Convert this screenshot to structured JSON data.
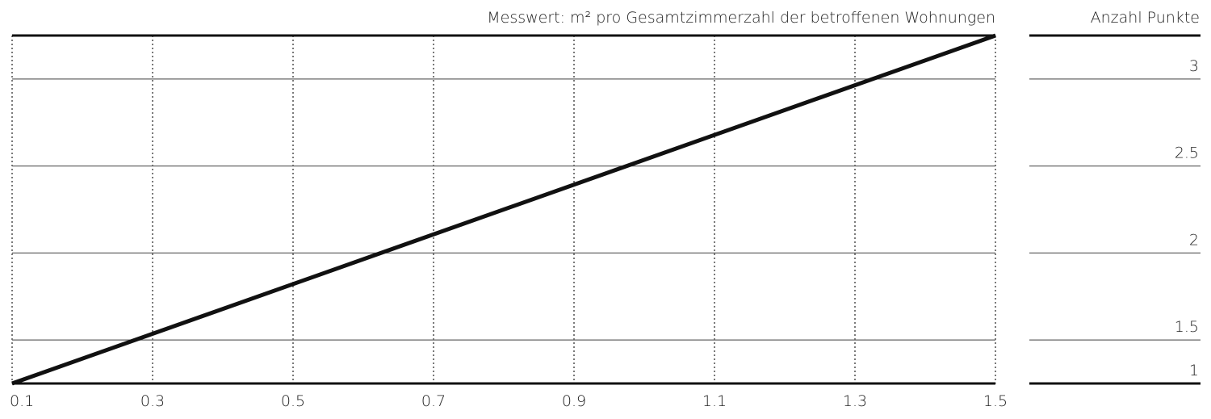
{
  "chart_data": {
    "type": "line",
    "title": "Messwert: m² pro Gesamtzimmerzahl der betroffenen Wohnungen",
    "xlabel": "",
    "ylabel": "Anzahl Punkte",
    "x_ticks": [
      "0.1",
      "0.3",
      "0.5",
      "0.7",
      "0.9",
      "1.1",
      "1.3",
      "1.5"
    ],
    "xlim": [
      0.1,
      1.5
    ],
    "ylim": [
      1.25,
      3.25
    ],
    "y_gridlines": [
      3,
      2.5,
      2,
      1.5
    ],
    "points_labels": [
      "3",
      "2.5",
      "2",
      "1.5",
      "1"
    ],
    "series": [
      {
        "x": [
          0.1,
          1.5
        ],
        "y": [
          1.25,
          3.25
        ]
      }
    ],
    "grid": {
      "x": "dotted",
      "y": "solid"
    },
    "line_color": "#111111"
  }
}
